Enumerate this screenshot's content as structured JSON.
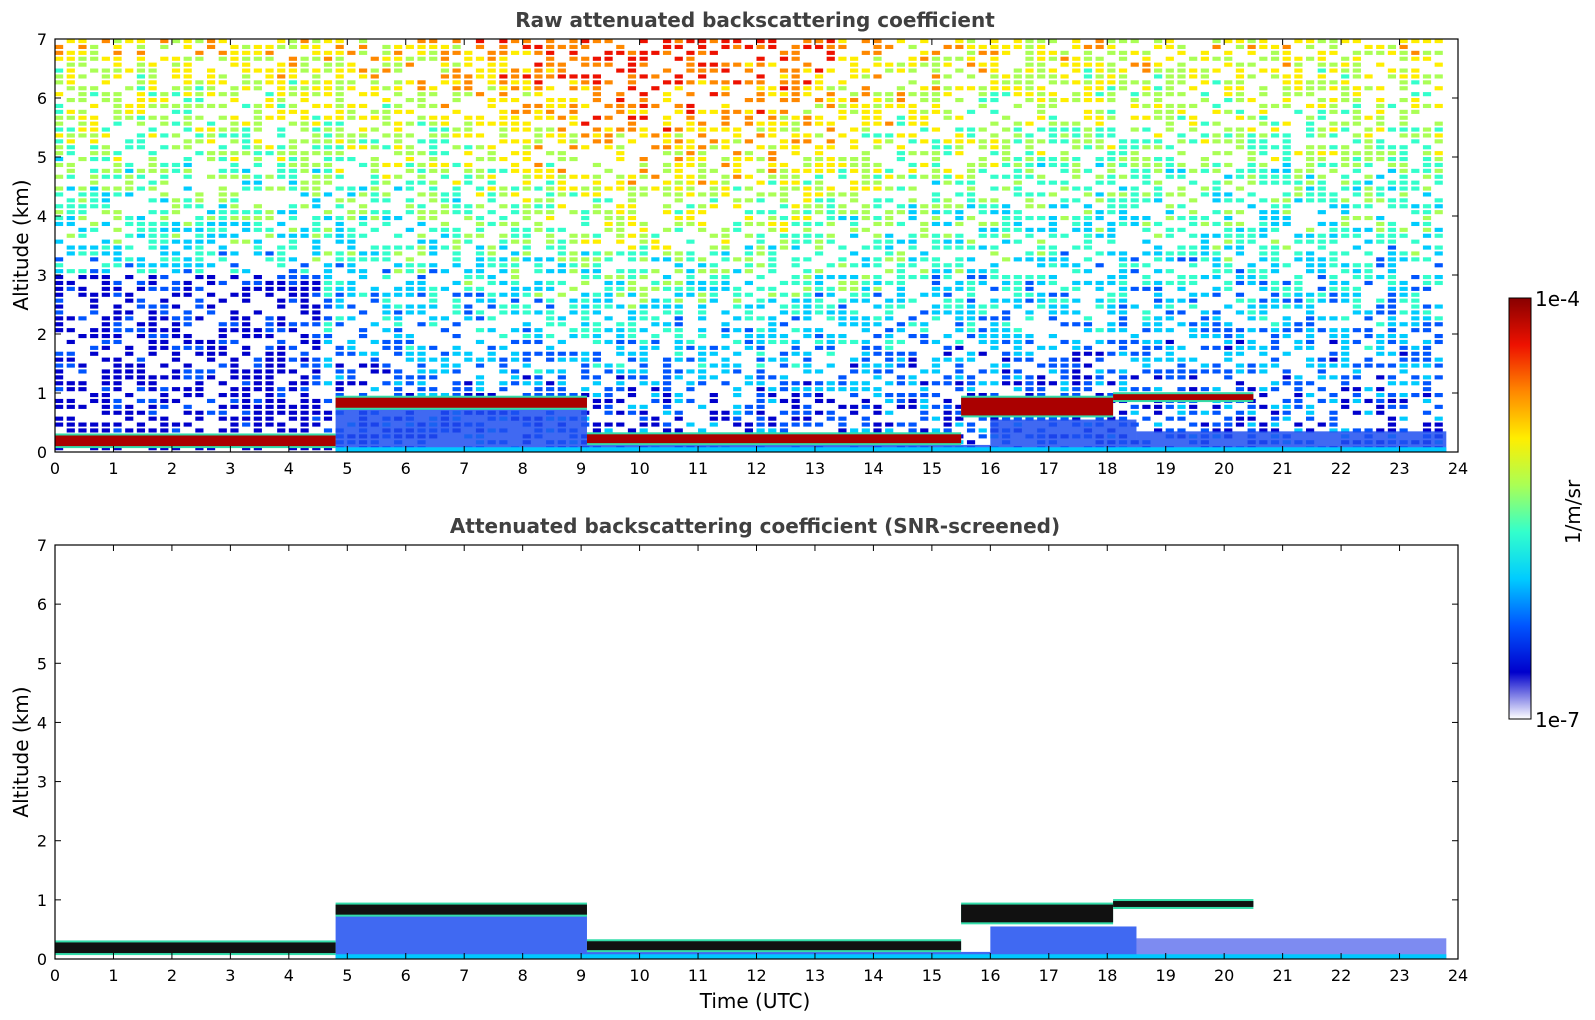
{
  "chart_data": [
    {
      "type": "heatmap",
      "title": "Raw attenuated backscattering coefficient",
      "xlabel": "",
      "ylabel": "Altitude (km)",
      "xlim": [
        0,
        24
      ],
      "ylim": [
        0,
        7
      ],
      "xticks": [
        "0",
        "1",
        "2",
        "3",
        "4",
        "5",
        "6",
        "7",
        "8",
        "9",
        "10",
        "11",
        "12",
        "13",
        "14",
        "15",
        "16",
        "17",
        "18",
        "19",
        "20",
        "21",
        "22",
        "23",
        "24"
      ],
      "yticks": [
        "0",
        "1",
        "2",
        "3",
        "4",
        "5",
        "6",
        "7"
      ],
      "grid": false,
      "screened": false,
      "cloud_layers": [
        {
          "x": [
            0,
            4.8
          ],
          "base_km": 0.1,
          "top_km": 0.28
        },
        {
          "x": [
            4.8,
            9.1
          ],
          "base_km": 0.75,
          "top_km": 0.92
        },
        {
          "x": [
            9.1,
            15.5
          ],
          "base_km": 0.15,
          "top_km": 0.3
        },
        {
          "x": [
            15.5,
            18.1
          ],
          "base_km": 0.62,
          "top_km": 0.92
        },
        {
          "x": [
            18.1,
            20.5
          ],
          "base_km": 0.88,
          "top_km": 0.98
        }
      ],
      "boundary_layer": [
        {
          "x": [
            4.8,
            9.1
          ],
          "top_km": 0.75
        },
        {
          "x": [
            9.1,
            16.0
          ],
          "top_km": 0.12
        },
        {
          "x": [
            16.0,
            18.5
          ],
          "top_km": 0.55
        },
        {
          "x": [
            18.5,
            23.8
          ],
          "top_km": 0.35
        }
      ]
    },
    {
      "type": "heatmap",
      "title": "Attenuated backscattering coefficient (SNR-screened)",
      "xlabel": "Time (UTC)",
      "ylabel": "Altitude (km)",
      "xlim": [
        0,
        24
      ],
      "ylim": [
        0,
        7
      ],
      "xticks": [
        "0",
        "1",
        "2",
        "3",
        "4",
        "5",
        "6",
        "7",
        "8",
        "9",
        "10",
        "11",
        "12",
        "13",
        "14",
        "15",
        "16",
        "17",
        "18",
        "19",
        "20",
        "21",
        "22",
        "23",
        "24"
      ],
      "yticks": [
        "0",
        "1",
        "2",
        "3",
        "4",
        "5",
        "6",
        "7"
      ],
      "grid": false,
      "screened": true,
      "cloud_layers": [
        {
          "x": [
            0,
            4.8
          ],
          "base_km": 0.1,
          "top_km": 0.28
        },
        {
          "x": [
            4.8,
            9.1
          ],
          "base_km": 0.75,
          "top_km": 0.92
        },
        {
          "x": [
            9.1,
            15.5
          ],
          "base_km": 0.15,
          "top_km": 0.3
        },
        {
          "x": [
            15.5,
            18.1
          ],
          "base_km": 0.62,
          "top_km": 0.92
        },
        {
          "x": [
            18.1,
            20.5
          ],
          "base_km": 0.88,
          "top_km": 0.98
        }
      ],
      "boundary_layer": [
        {
          "x": [
            4.8,
            9.1
          ],
          "top_km": 0.75
        },
        {
          "x": [
            9.1,
            16.0
          ],
          "top_km": 0.12
        },
        {
          "x": [
            16.0,
            18.5
          ],
          "top_km": 0.55
        },
        {
          "x": [
            18.5,
            23.8
          ],
          "top_km": 0.35
        }
      ]
    }
  ],
  "colorbar": {
    "label": "1/m/sr",
    "max_label": "1e-4",
    "min_label": "1e-7",
    "colormap": "jet",
    "scale": "log",
    "colors": [
      "#ffffff",
      "#0000cc",
      "#0055ff",
      "#00ccff",
      "#33ffcc",
      "#aaff55",
      "#ffee00",
      "#ff8800",
      "#ee1100",
      "#880000"
    ]
  }
}
